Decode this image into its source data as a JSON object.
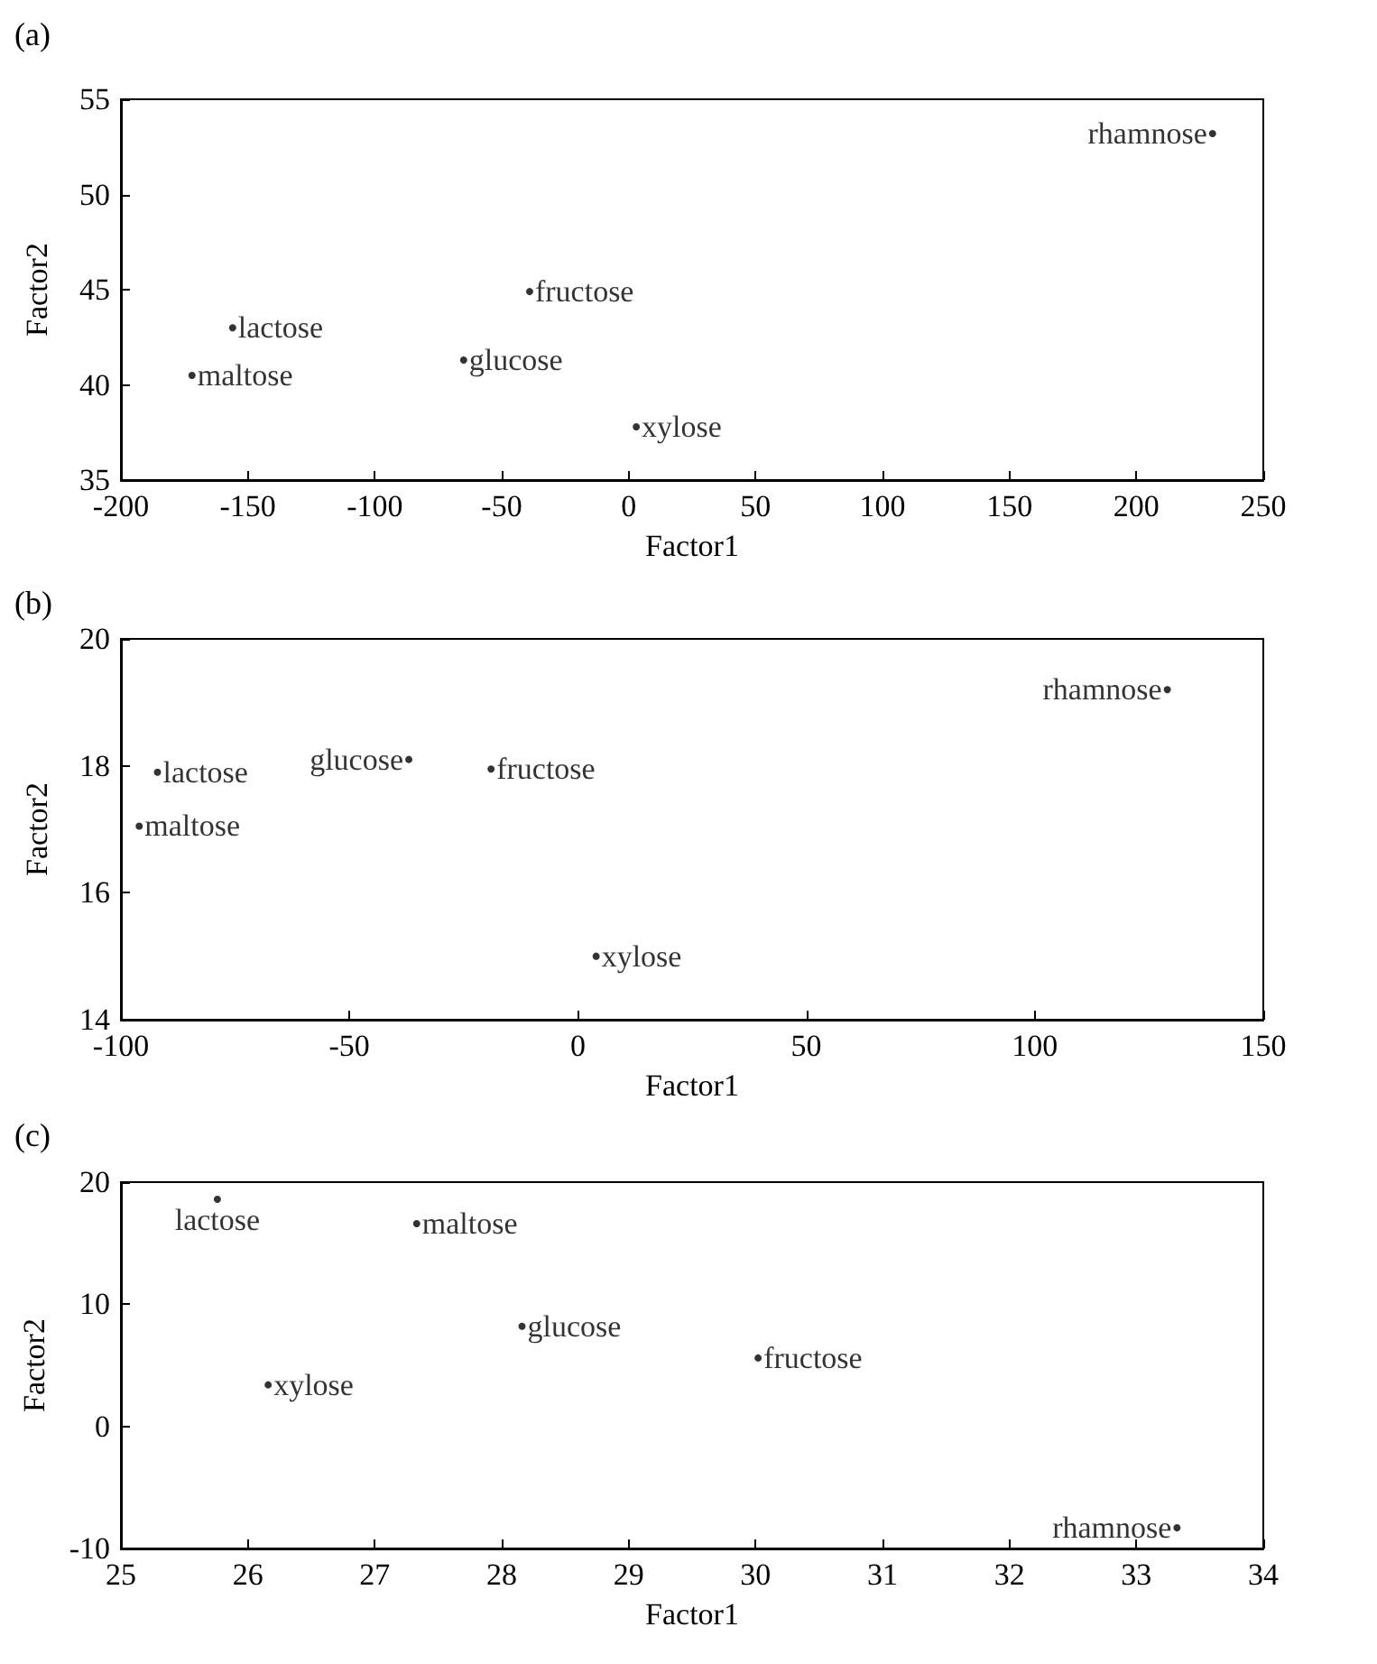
{
  "chart_data": [
    {
      "type": "scatter",
      "title": "(a)",
      "xlabel": "Factor1",
      "ylabel": "Factor2",
      "xlim": [
        -200,
        250
      ],
      "ylim": [
        35,
        55
      ],
      "xticks": [
        -200,
        -150,
        -100,
        -50,
        0,
        50,
        100,
        150,
        200,
        250
      ],
      "yticks": [
        35,
        40,
        45,
        50,
        55
      ],
      "grid": false,
      "legend": false,
      "marker": "circle",
      "series": [
        {
          "name": "rhamnose",
          "color": "#000000",
          "x": [
            230
          ],
          "values": [
            53.2
          ]
        },
        {
          "name": "lactose",
          "color": "#000000",
          "x": [
            -156
          ],
          "values": [
            43
          ]
        },
        {
          "name": "fructose",
          "color": "#000000",
          "x": [
            -39
          ],
          "values": [
            44.9
          ]
        },
        {
          "name": "maltose",
          "color": "#000000",
          "x": [
            -172
          ],
          "values": [
            40.5
          ]
        },
        {
          "name": "glucose",
          "color": "#000000",
          "x": [
            -65
          ],
          "values": [
            41.3
          ]
        },
        {
          "name": "xylose",
          "color": "#000000",
          "x": [
            3
          ],
          "values": [
            37.8
          ]
        }
      ]
    },
    {
      "type": "scatter",
      "title": "(b)",
      "xlabel": "Factor1",
      "ylabel": "Factor2",
      "xlim": [
        -100,
        150
      ],
      "ylim": [
        14,
        20
      ],
      "xticks": [
        -100,
        -50,
        0,
        50,
        100,
        150
      ],
      "yticks": [
        14,
        16,
        18,
        20
      ],
      "grid": false,
      "legend": false,
      "marker": "circle",
      "series": [
        {
          "name": "rhamnose",
          "color": "#000000",
          "x": [
            129
          ],
          "values": [
            19.2
          ]
        },
        {
          "name": "lactose",
          "color": "#000000",
          "x": [
            -92
          ],
          "values": [
            17.9
          ]
        },
        {
          "name": "glucose",
          "color": "#000000",
          "x": [
            -37
          ],
          "values": [
            18.1
          ]
        },
        {
          "name": "fructose",
          "color": "#000000",
          "x": [
            -19
          ],
          "values": [
            17.95
          ]
        },
        {
          "name": "maltose",
          "color": "#000000",
          "x": [
            -96
          ],
          "values": [
            17.05
          ]
        },
        {
          "name": "xylose",
          "color": "#000000",
          "x": [
            4
          ],
          "values": [
            15
          ]
        }
      ]
    },
    {
      "type": "scatter",
      "title": "(c)",
      "xlabel": "Factor1",
      "ylabel": "Factor2",
      "xlim": [
        25,
        34
      ],
      "ylim": [
        -10,
        20
      ],
      "xticks": [
        25,
        26,
        27,
        28,
        29,
        30,
        31,
        32,
        33,
        34
      ],
      "yticks": [
        -10,
        0,
        10,
        20
      ],
      "grid": false,
      "legend": false,
      "marker": "circle",
      "series": [
        {
          "name": "lactose",
          "color": "#000000",
          "x": [
            25.76
          ],
          "values": [
            18.6
          ]
        },
        {
          "name": "maltose",
          "color": "#000000",
          "x": [
            27.33
          ],
          "values": [
            16.6
          ]
        },
        {
          "name": "glucose",
          "color": "#000000",
          "x": [
            28.16
          ],
          "values": [
            8.2
          ]
        },
        {
          "name": "fructose",
          "color": "#000000",
          "x": [
            30.02
          ],
          "values": [
            5.6
          ]
        },
        {
          "name": "xylose",
          "color": "#000000",
          "x": [
            26.16
          ],
          "values": [
            3.4
          ]
        },
        {
          "name": "rhamnose",
          "color": "#000000",
          "x": [
            33.32
          ],
          "values": [
            -8.3
          ]
        }
      ]
    }
  ]
}
